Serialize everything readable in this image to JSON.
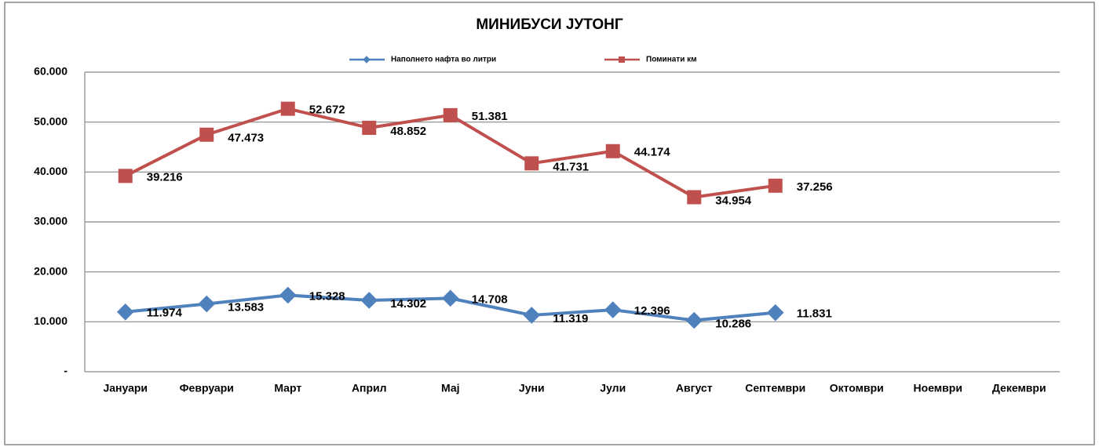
{
  "chart_data": {
    "type": "line",
    "title": "МИНИБУСИ   ЈУТОНГ",
    "categories": [
      "Јануари",
      "Февруари",
      "Март",
      "Април",
      "Мај",
      "Јуни",
      "Јули",
      "Август",
      "Септември",
      "Октомври",
      "Ноември",
      "Декември"
    ],
    "series": [
      {
        "name": "Наполнето нафта во литри",
        "color": "#4f81bd",
        "marker": "diamond",
        "values": [
          11974,
          13583,
          15328,
          14302,
          14708,
          11319,
          12396,
          10286,
          11831,
          null,
          null,
          null
        ],
        "value_labels": [
          "11.974",
          "13.583",
          "15.328",
          "14.302",
          "14.708",
          "11.319",
          "12.396",
          "10.286",
          "11.831",
          null,
          null,
          null
        ]
      },
      {
        "name": "Поминати км",
        "color": "#c0504d",
        "marker": "square",
        "values": [
          39216,
          47473,
          52672,
          48852,
          51381,
          41731,
          44174,
          34954,
          37256,
          null,
          null,
          null
        ],
        "value_labels": [
          "39.216",
          "47.473",
          "52.672",
          "48.852",
          "51.381",
          "41.731",
          "44.174",
          "34.954",
          "37.256",
          null,
          null,
          null
        ]
      }
    ],
    "ylim": [
      0,
      60000
    ],
    "yticks": [
      {
        "value": 0,
        "label": "-"
      },
      {
        "value": 10000,
        "label": "10.000"
      },
      {
        "value": 20000,
        "label": "20.000"
      },
      {
        "value": 30000,
        "label": "30.000"
      },
      {
        "value": 40000,
        "label": "40.000"
      },
      {
        "value": 50000,
        "label": "50.000"
      },
      {
        "value": 60000,
        "label": "60.000"
      }
    ],
    "grid": true,
    "legend": "top"
  }
}
